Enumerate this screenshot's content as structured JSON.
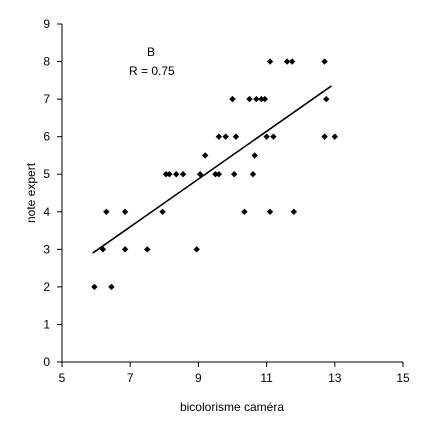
{
  "chart_data": {
    "type": "scatter",
    "title": "",
    "xlabel": "bicolorisme caméra",
    "ylabel": "note expert",
    "xlim": [
      5,
      15
    ],
    "ylim": [
      0,
      9
    ],
    "xticks": [
      5,
      7,
      9,
      11,
      13,
      15
    ],
    "yticks": [
      0,
      1,
      2,
      3,
      4,
      5,
      6,
      7,
      8,
      9
    ],
    "grid": false,
    "annotations": [
      "B",
      "R = 0.75"
    ],
    "trendline": {
      "type": "linear",
      "x": [
        5.9,
        12.9
      ],
      "y": [
        2.9,
        7.35
      ]
    },
    "points": [
      [
        5.95,
        2
      ],
      [
        6.2,
        3
      ],
      [
        6.3,
        4
      ],
      [
        6.45,
        2
      ],
      [
        6.85,
        4
      ],
      [
        6.85,
        3
      ],
      [
        7.5,
        3
      ],
      [
        7.95,
        4
      ],
      [
        8.05,
        5
      ],
      [
        8.15,
        5
      ],
      [
        8.35,
        5
      ],
      [
        8.55,
        5
      ],
      [
        8.95,
        3
      ],
      [
        9.05,
        5
      ],
      [
        9.2,
        5.5
      ],
      [
        9.5,
        5
      ],
      [
        9.6,
        6
      ],
      [
        9.6,
        5
      ],
      [
        9.8,
        6
      ],
      [
        10.0,
        7
      ],
      [
        10.05,
        5
      ],
      [
        10.1,
        6
      ],
      [
        10.35,
        4
      ],
      [
        10.5,
        7
      ],
      [
        10.6,
        5
      ],
      [
        10.65,
        5.5
      ],
      [
        10.7,
        7
      ],
      [
        10.85,
        7
      ],
      [
        10.95,
        7
      ],
      [
        11.0,
        6
      ],
      [
        11.1,
        8
      ],
      [
        11.1,
        4
      ],
      [
        11.2,
        6
      ],
      [
        11.6,
        8
      ],
      [
        11.75,
        8
      ],
      [
        11.8,
        4
      ],
      [
        12.7,
        8
      ],
      [
        12.7,
        6
      ],
      [
        12.75,
        7
      ],
      [
        13.0,
        6
      ]
    ]
  }
}
